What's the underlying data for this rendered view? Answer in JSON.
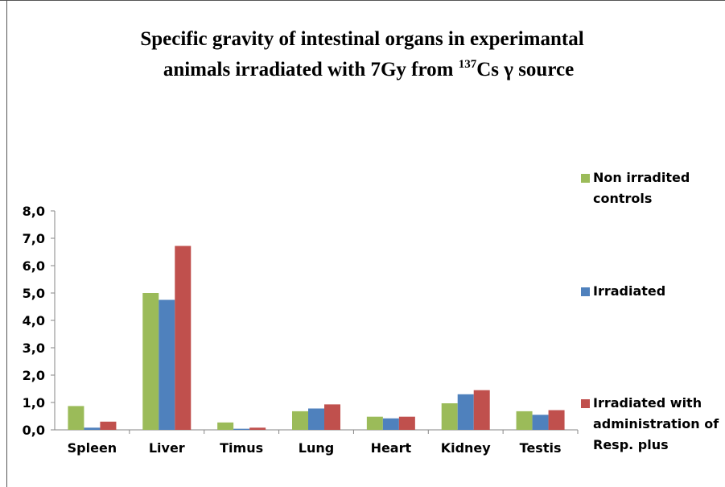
{
  "chart_data": {
    "type": "bar",
    "title": [
      "Specific gravity of intestinal organs in experimantal",
      "animals irradiated with 7Gy  from ",
      "137",
      "Cs γ source"
    ],
    "categories": [
      "Spleen",
      "Liver",
      "Timus",
      "Lung",
      "Heart",
      "Kidney",
      "Testis"
    ],
    "series": [
      {
        "name": "Non irradited controls",
        "color": "#9bbb59",
        "values": [
          0.87,
          5.0,
          0.27,
          0.68,
          0.48,
          0.97,
          0.68
        ]
      },
      {
        "name": "Irradiated",
        "color": "#4f81bd",
        "values": [
          0.08,
          4.75,
          0.04,
          0.78,
          0.42,
          1.3,
          0.55
        ]
      },
      {
        "name": "Irradiated with administration of Resp. plus",
        "color": "#c0504d",
        "values": [
          0.3,
          6.72,
          0.08,
          0.93,
          0.48,
          1.45,
          0.72
        ]
      }
    ],
    "ylim": [
      0,
      8
    ],
    "yticks": [
      {
        "value": 0,
        "label": "0,0"
      },
      {
        "value": 1,
        "label": "1,0"
      },
      {
        "value": 2,
        "label": "2,0"
      },
      {
        "value": 3,
        "label": "3,0"
      },
      {
        "value": 4,
        "label": "4,0"
      },
      {
        "value": 5,
        "label": "5,0"
      },
      {
        "value": 6,
        "label": "6,0"
      },
      {
        "value": 7,
        "label": "7,0"
      },
      {
        "value": 8,
        "label": "8,0"
      }
    ],
    "grid": false,
    "legend": "right"
  }
}
